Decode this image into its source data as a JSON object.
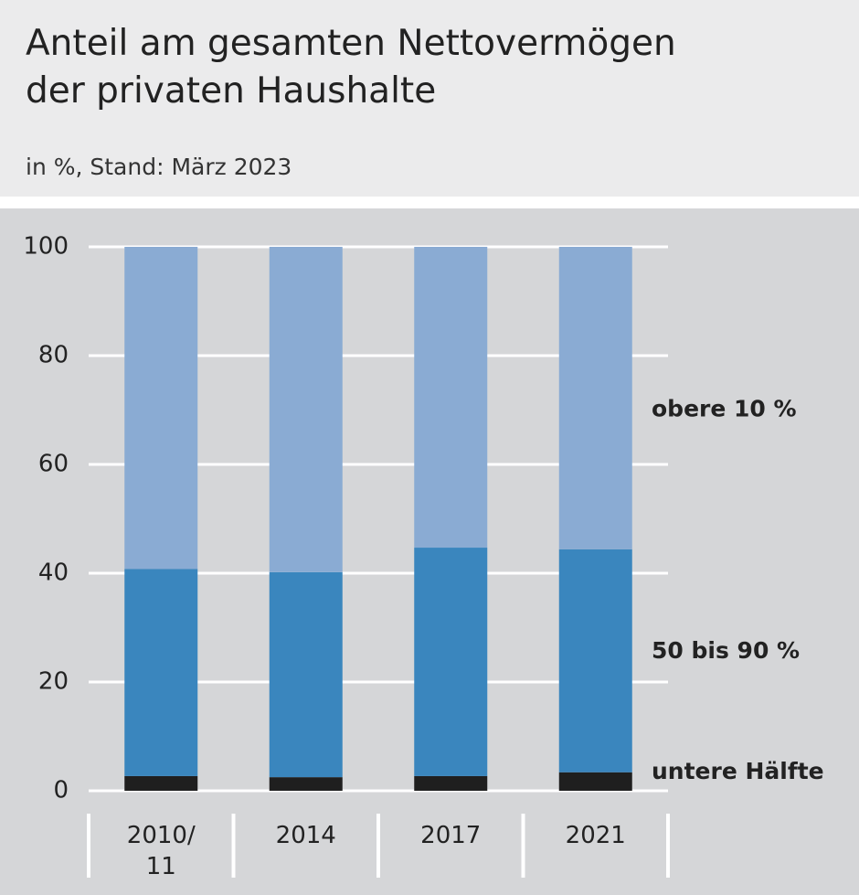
{
  "chart_data": {
    "type": "stacked-bar",
    "title": "Anteil am gesamten Nettovermögen\nder privaten Haushalte",
    "subtitle": "in %, Stand: März 2023",
    "categories": [
      "2010/\n11",
      "2014",
      "2017",
      "2021"
    ],
    "series": [
      {
        "name": "untere Hälfte",
        "color": "#1f1f1f",
        "values": [
          2.7,
          2.5,
          2.7,
          3.4
        ]
      },
      {
        "name": "50 bis 90 %",
        "color": "#3a86be",
        "values": [
          38.1,
          37.7,
          42.0,
          41.0
        ]
      },
      {
        "name": "obere 10 %",
        "color": "#8aabd3",
        "values": [
          59.2,
          59.8,
          55.3,
          55.6
        ]
      }
    ],
    "ylim": [
      0,
      100
    ],
    "yticks": [
      0,
      20,
      40,
      60,
      80,
      100
    ],
    "grid": true
  }
}
